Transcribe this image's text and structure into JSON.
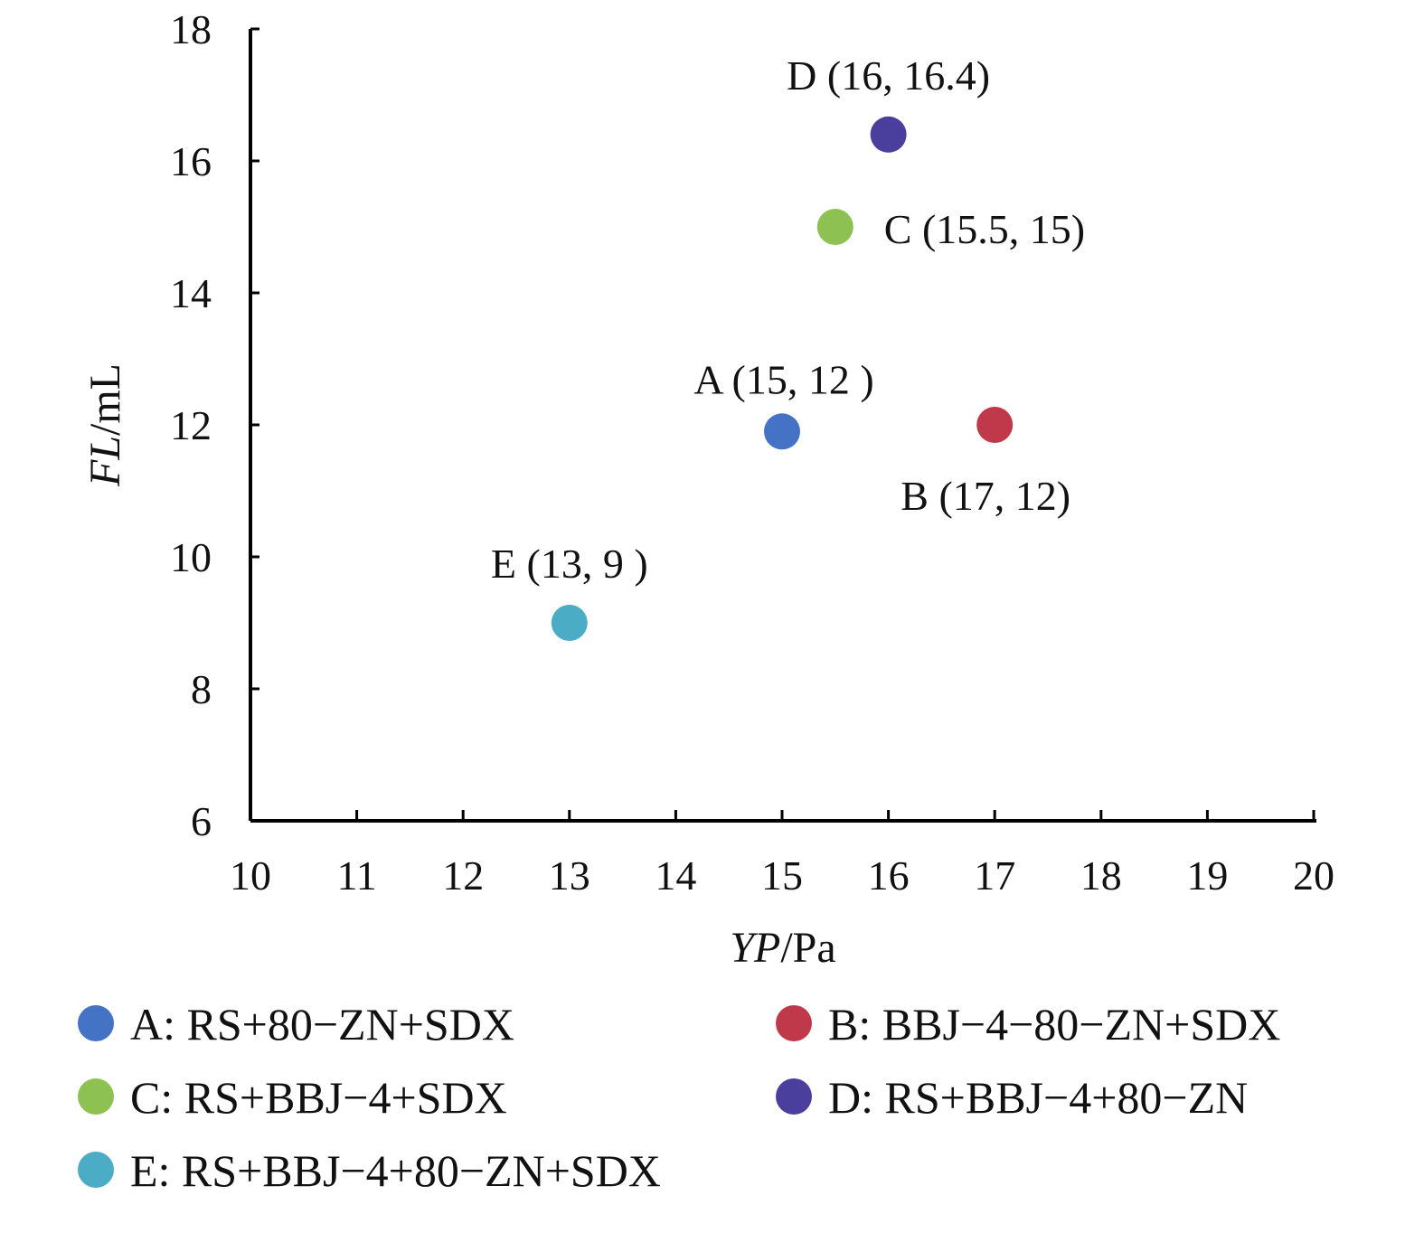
{
  "chart_data": {
    "type": "scatter",
    "title": "",
    "xlabel": {
      "italic": "YP",
      "unit": "/Pa"
    },
    "ylabel": {
      "italic": "FL",
      "unit": "/mL"
    },
    "xlim": [
      10,
      20
    ],
    "ylim": [
      6,
      18
    ],
    "xticks": [
      10,
      11,
      12,
      13,
      14,
      15,
      16,
      17,
      18,
      19,
      20
    ],
    "yticks": [
      6,
      8,
      10,
      12,
      14,
      16,
      18
    ],
    "grid": false,
    "legend_position": "bottom",
    "points": [
      {
        "id": "A",
        "x": 15,
        "y": 11.9,
        "color": "#4472C4",
        "label": "A (15, 12 )",
        "label_pos": "above-left",
        "legend": "A: RS+80−ZN+SDX"
      },
      {
        "id": "B",
        "x": 17,
        "y": 12,
        "color": "#C0394B",
        "label": "B (17, 12)",
        "label_pos": "below",
        "legend": "B: BBJ−4−80−ZN+SDX"
      },
      {
        "id": "C",
        "x": 15.5,
        "y": 15,
        "color": "#8DC152",
        "label": "C (15.5, 15)",
        "label_pos": "right",
        "legend": "C: RS+BBJ−4+SDX"
      },
      {
        "id": "D",
        "x": 16,
        "y": 16.4,
        "color": "#4B3F9E",
        "label": "D (16, 16.4)",
        "label_pos": "above",
        "legend": "D: RS+BBJ−4+80−ZN"
      },
      {
        "id": "E",
        "x": 13,
        "y": 9,
        "color": "#4BACC6",
        "label": "E (13, 9 )",
        "label_pos": "above",
        "legend": "E: RS+BBJ−4+80−ZN+SDX"
      }
    ]
  }
}
